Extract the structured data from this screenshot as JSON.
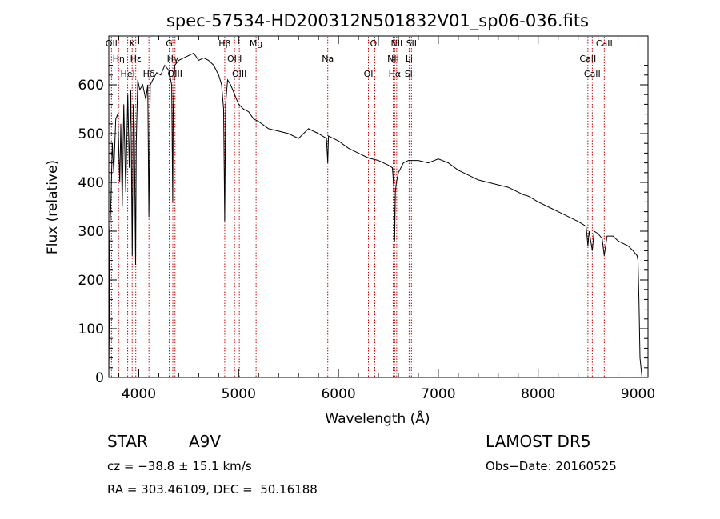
{
  "chart_data": {
    "type": "line",
    "title": "spec-57534-HD200312N501832V01_sp06-036.fits",
    "xlabel": "Wavelength (Å)",
    "ylabel": "Flux (relative)",
    "xlim": [
      3700,
      9100
    ],
    "ylim": [
      0,
      700
    ],
    "x_ticks": [
      4000,
      5000,
      6000,
      7000,
      8000,
      9000
    ],
    "y_ticks": [
      0,
      100,
      200,
      300,
      400,
      500,
      600
    ],
    "grid": false,
    "series": [
      {
        "x": [
          3700,
          3705,
          3710,
          3720,
          3735,
          3750,
          3770,
          3790,
          3810,
          3820,
          3835,
          3850,
          3870,
          3890,
          3905,
          3920,
          3935,
          3945,
          3955,
          3968,
          3975,
          3990,
          4010,
          4040,
          4070,
          4090,
          4101,
          4115,
          4140,
          4180,
          4220,
          4260,
          4300,
          4330,
          4340,
          4345,
          4360,
          4400,
          4450,
          4500,
          4550,
          4600,
          4650,
          4700,
          4750,
          4800,
          4830,
          4850,
          4861,
          4870,
          4890,
          4920,
          4960,
          5000,
          5050,
          5100,
          5150,
          5200,
          5300,
          5400,
          5500,
          5600,
          5700,
          5800,
          5880,
          5893,
          5900,
          6000,
          6100,
          6200,
          6300,
          6400,
          6450,
          6500,
          6540,
          6555,
          6563,
          6570,
          6580,
          6600,
          6650,
          6700,
          6800,
          6900,
          7000,
          7100,
          7200,
          7300,
          7400,
          7500,
          7600,
          7700,
          7800,
          7850,
          7900,
          8000,
          8100,
          8200,
          8300,
          8400,
          8480,
          8498,
          8510,
          8542,
          8560,
          8600,
          8640,
          8662,
          8690,
          8750,
          8800,
          8850,
          8900,
          8950,
          8990,
          9000,
          9010,
          9020,
          9040
        ],
        "y": [
          10,
          120,
          300,
          350,
          480,
          420,
          530,
          540,
          400,
          520,
          350,
          560,
          380,
          580,
          430,
          590,
          250,
          560,
          520,
          230,
          480,
          610,
          590,
          600,
          570,
          600,
          330,
          600,
          610,
          625,
          620,
          640,
          630,
          600,
          360,
          550,
          640,
          650,
          655,
          660,
          665,
          650,
          655,
          650,
          640,
          620,
          600,
          550,
          320,
          560,
          610,
          600,
          580,
          560,
          550,
          545,
          530,
          525,
          510,
          505,
          500,
          490,
          510,
          500,
          490,
          440,
          495,
          485,
          470,
          460,
          450,
          445,
          440,
          435,
          430,
          390,
          280,
          380,
          400,
          420,
          440,
          445,
          445,
          440,
          448,
          440,
          425,
          415,
          405,
          400,
          395,
          390,
          380,
          375,
          372,
          360,
          350,
          340,
          330,
          320,
          310,
          270,
          300,
          260,
          300,
          295,
          285,
          250,
          290,
          290,
          280,
          275,
          270,
          260,
          250,
          240,
          150,
          40,
          0
        ]
      }
    ],
    "line_markers": [
      {
        "w": 3727,
        "label": "OII"
      },
      {
        "w": 3798,
        "label": "Hη"
      },
      {
        "w": 3889,
        "label": "HeI"
      },
      {
        "w": 3934,
        "label": "K"
      },
      {
        "w": 3970,
        "label": "Hε"
      },
      {
        "w": 4102,
        "label": "Hδ"
      },
      {
        "w": 4305,
        "label": "G"
      },
      {
        "w": 4341,
        "label": "Hγ"
      },
      {
        "w": 4363,
        "label": "OIII"
      },
      {
        "w": 4861,
        "label": "Hβ"
      },
      {
        "w": 4959,
        "label": "OIII"
      },
      {
        "w": 5007,
        "label": "OIII"
      },
      {
        "w": 5175,
        "label": "Mg"
      },
      {
        "w": 5893,
        "label": "Na"
      },
      {
        "w": 6300,
        "label": "OI"
      },
      {
        "w": 6364,
        "label": "OI"
      },
      {
        "w": 6548,
        "label": "NII"
      },
      {
        "w": 6563,
        "label": "Hα"
      },
      {
        "w": 6583,
        "label": "NII"
      },
      {
        "w": 6708,
        "label": "Li"
      },
      {
        "w": 6716,
        "label": "SII"
      },
      {
        "w": 6731,
        "label": "SII"
      },
      {
        "w": 8498,
        "label": "CaII"
      },
      {
        "w": 8542,
        "label": "CaII"
      },
      {
        "w": 8662,
        "label": "CaII"
      }
    ],
    "line_color": "#000000",
    "marker_color": "#cc0000"
  },
  "info": {
    "object_class": "STAR",
    "subclass": "A9V",
    "survey": "LAMOST DR5",
    "cz": "cz = −38.8 ± 15.1 km/s",
    "obs_date": "Obs−Date: 20160525",
    "coords": "RA = 303.46109, DEC =  50.16188"
  }
}
